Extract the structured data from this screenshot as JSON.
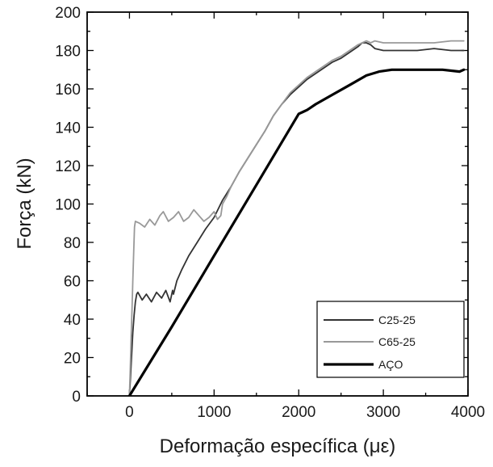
{
  "chart_data": {
    "type": "line",
    "title": "",
    "xlabel": "Deformação específica (με)",
    "ylabel": "Força (kN)",
    "xlim": [
      -500,
      4000
    ],
    "ylim": [
      0,
      200
    ],
    "xticks": [
      0,
      1000,
      2000,
      3000,
      4000
    ],
    "yticks": [
      0,
      20,
      40,
      60,
      80,
      100,
      120,
      140,
      160,
      180,
      200
    ],
    "grid": false,
    "legend_position": "bottom-right",
    "series": [
      {
        "name": "C25-25",
        "color": "#333333",
        "x": [
          0,
          10,
          20,
          30,
          40,
          55,
          70,
          85,
          100,
          150,
          200,
          260,
          320,
          380,
          430,
          480,
          510,
          520,
          560,
          620,
          700,
          800,
          900,
          1000,
          1100,
          1200,
          1300,
          1400,
          1500,
          1600,
          1700,
          1800,
          1900,
          2000,
          2100,
          2200,
          2300,
          2400,
          2500,
          2600,
          2700,
          2750,
          2800,
          2850,
          2900,
          3000,
          3200,
          3400,
          3600,
          3800,
          3950
        ],
        "y": [
          0,
          8,
          16,
          25,
          33,
          42,
          49,
          53,
          54,
          50,
          53,
          49,
          54,
          51,
          55,
          49,
          55,
          53,
          60,
          66,
          73,
          80,
          87,
          93,
          102,
          109,
          117,
          124,
          131,
          138,
          146,
          152,
          157,
          161,
          165,
          168,
          171,
          174,
          176,
          179,
          182,
          184,
          184,
          183,
          181,
          180,
          180,
          180,
          181,
          180,
          180
        ]
      },
      {
        "name": "C65-25",
        "color": "#999999",
        "x": [
          0,
          10,
          20,
          30,
          40,
          50,
          60,
          70,
          120,
          180,
          240,
          300,
          360,
          400,
          460,
          520,
          580,
          640,
          700,
          760,
          820,
          880,
          940,
          1000,
          1040,
          1080,
          1100,
          1150,
          1200,
          1300,
          1400,
          1500,
          1600,
          1700,
          1800,
          1900,
          2000,
          2100,
          2200,
          2300,
          2400,
          2500,
          2600,
          2700,
          2750,
          2800,
          2850,
          2900,
          3000,
          3200,
          3400,
          3600,
          3800,
          3950
        ],
        "y": [
          0,
          15,
          30,
          45,
          60,
          75,
          88,
          91,
          90,
          88,
          92,
          89,
          94,
          96,
          91,
          93,
          96,
          91,
          93,
          97,
          94,
          91,
          93,
          96,
          92,
          94,
          100,
          104,
          109,
          117,
          124,
          131,
          138,
          146,
          152,
          158,
          162,
          166,
          169,
          172,
          175,
          177,
          180,
          183,
          184,
          185,
          184,
          185,
          184,
          184,
          184,
          184,
          185,
          185
        ]
      },
      {
        "name": "AÇO",
        "color": "#000000",
        "x": [
          0,
          500,
          1000,
          1500,
          2000,
          2050,
          2100,
          2200,
          2400,
          2600,
          2800,
          2950,
          3100,
          3300,
          3500,
          3700,
          3900,
          3950
        ],
        "y": [
          0,
          36,
          73,
          110,
          147,
          148,
          149,
          152,
          157,
          162,
          167,
          169,
          170,
          170,
          170,
          170,
          169,
          170
        ]
      }
    ]
  }
}
